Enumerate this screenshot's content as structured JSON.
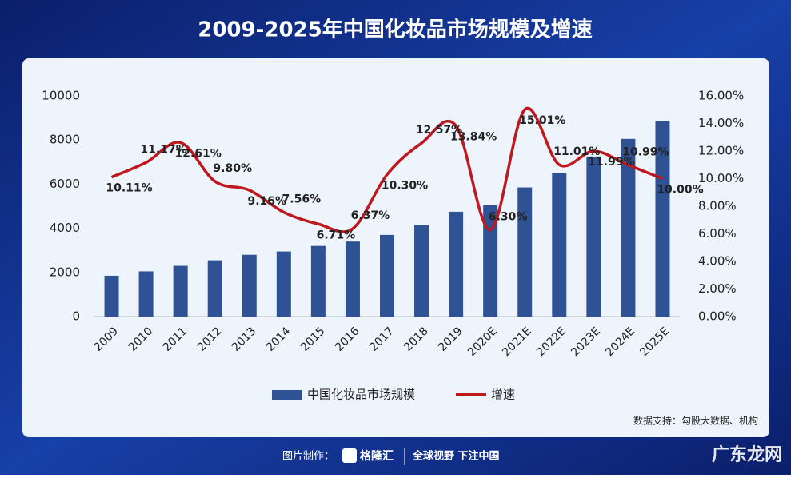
{
  "chart_data": {
    "type": "bar",
    "title": "2009-2025年中国化妆品市场规模及增速",
    "categories": [
      "2009",
      "2010",
      "2011",
      "2012",
      "2013",
      "2014",
      "2015",
      "2016",
      "2017",
      "2018",
      "2019",
      "2020E",
      "2021E",
      "2022E",
      "2023E",
      "2024E",
      "2025E"
    ],
    "series": [
      {
        "name": "中国化妆品市场规模",
        "type": "bar",
        "color": "#2f5295",
        "values": [
          1850,
          2050,
          2300,
          2550,
          2800,
          2950,
          3200,
          3400,
          3700,
          4150,
          4750,
          5050,
          5850,
          6500,
          7250,
          8050,
          8850
        ]
      },
      {
        "name": "增速",
        "type": "line",
        "axis": "y2",
        "color": "#c0161d",
        "values": [
          10.11,
          11.17,
          12.61,
          9.8,
          9.16,
          7.56,
          6.71,
          6.37,
          10.3,
          12.57,
          13.84,
          6.3,
          15.01,
          11.01,
          11.99,
          10.99,
          10.0
        ],
        "value_labels": [
          "10.11%",
          "11.17%",
          "12.61%",
          "9.80%",
          "9.16%",
          "7.56%",
          "6.71%",
          "6.37%",
          "10.30%",
          "12.57%",
          "13.84%",
          "6.30%",
          "15.01%",
          "11.01%",
          "11.99%",
          "10.99%",
          "10.00%"
        ]
      }
    ],
    "ylim": [
      0,
      10000
    ],
    "yticks": [
      0,
      2000,
      4000,
      6000,
      8000,
      10000
    ],
    "y2lim": [
      0,
      16
    ],
    "y2ticks": [
      {
        "value": 0,
        "label": "0.00%"
      },
      {
        "value": 2,
        "label": "2.00%"
      },
      {
        "value": 4,
        "label": "4.00%"
      },
      {
        "value": 6,
        "label": "6.00%"
      },
      {
        "value": 8,
        "label": "8.00%"
      },
      {
        "value": 10,
        "label": "10.00%"
      },
      {
        "value": 12,
        "label": "12.00%"
      },
      {
        "value": 14,
        "label": "14.00%"
      },
      {
        "value": 16,
        "label": "16.00%"
      }
    ],
    "grid": false,
    "legend": "bottom",
    "source": "数据支持：勾股大数据、机构"
  },
  "footer": {
    "label": "图片制作：",
    "brand": "格隆汇",
    "slogan": "全球视野 下注中国"
  },
  "watermark": "广东龙网"
}
